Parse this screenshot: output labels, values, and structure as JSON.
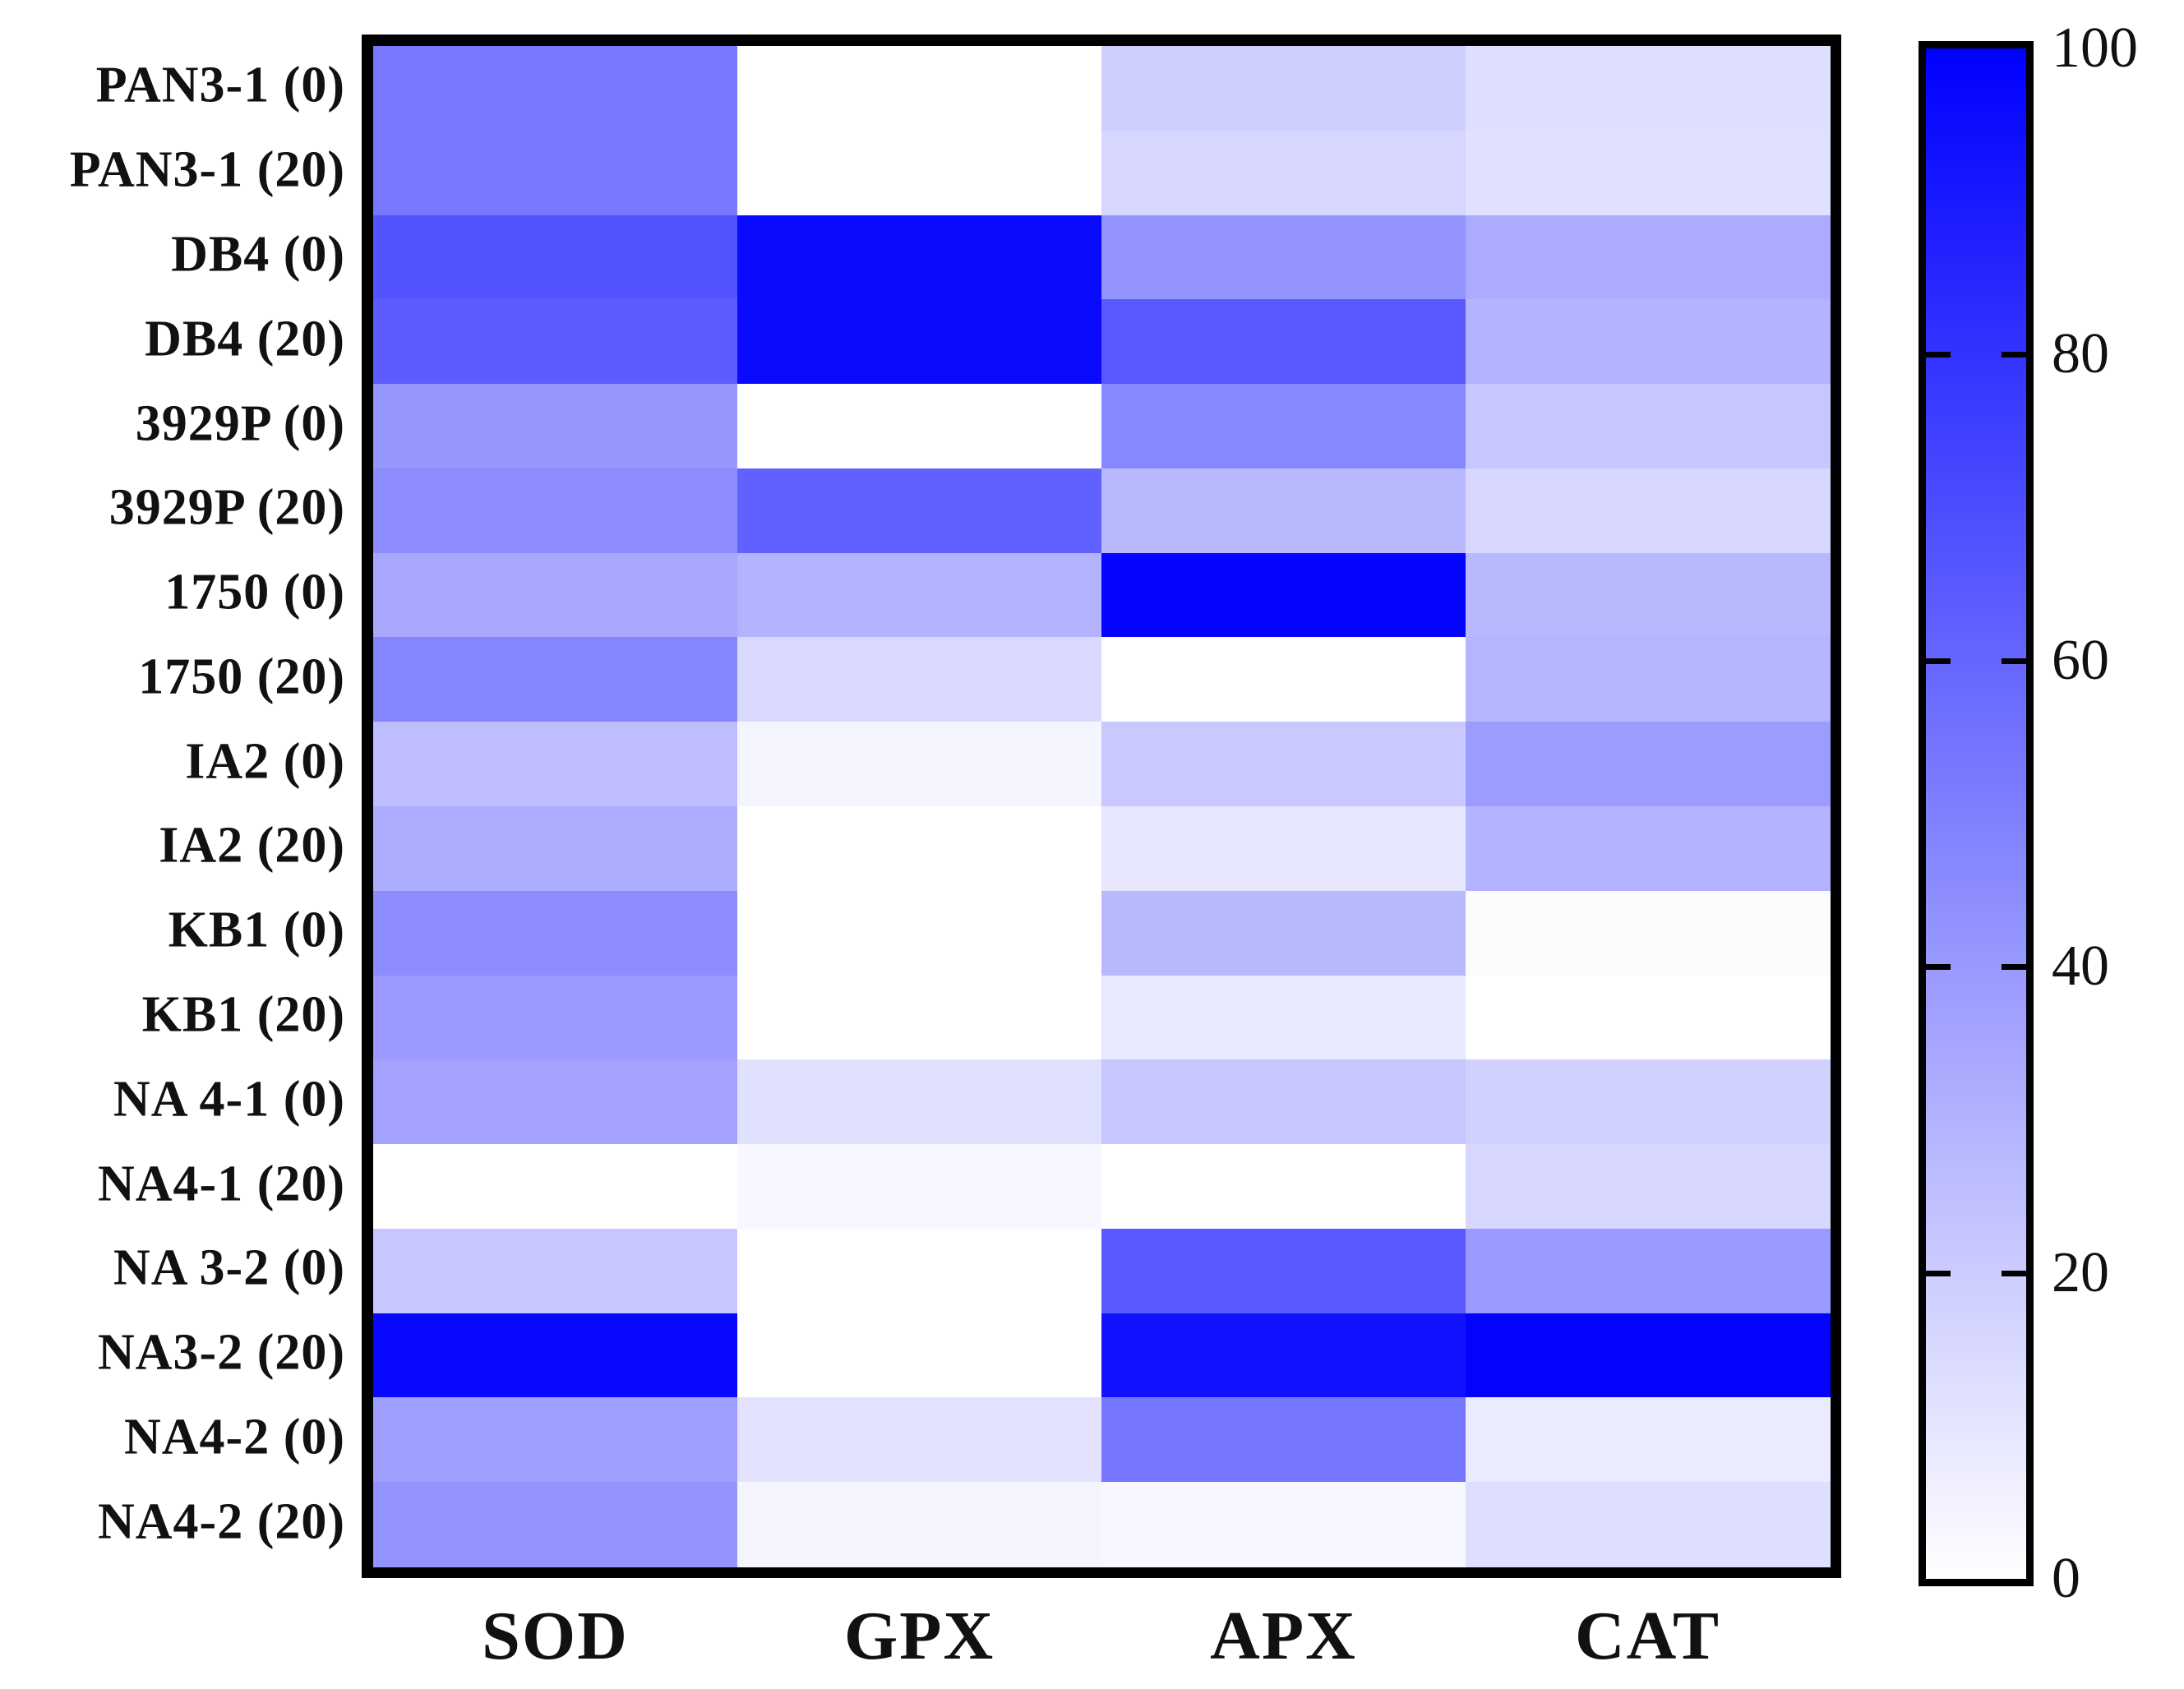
{
  "chart_data": {
    "type": "heatmap",
    "title": "",
    "xlabel": "",
    "ylabel": "",
    "columns": [
      "SOD",
      "GPX",
      "APX",
      "CAT"
    ],
    "rows": [
      "PAN3-1 (0)",
      "PAN3-1 (20)",
      "DB4 (0)",
      "DB4 (20)",
      "3929P (0)",
      "3929P (20)",
      "1750 (0)",
      "1750 (20)",
      "IA2 (0)",
      "IA2 (20)",
      "KB1 (0)",
      "KB1 (20)",
      "NA 4-1 (0)",
      "NA4-1 (20)",
      "NA 3-2 (0)",
      "NA3-2 (20)",
      "NA4-2 (0)",
      "NA4-2 (20)"
    ],
    "values": [
      [
        53,
        0,
        19,
        13
      ],
      [
        53,
        0,
        16,
        12
      ],
      [
        67,
        96,
        42,
        33
      ],
      [
        64,
        96,
        65,
        30
      ],
      [
        41,
        0,
        47,
        22
      ],
      [
        45,
        62,
        28,
        16
      ],
      [
        34,
        30,
        98,
        28
      ],
      [
        48,
        15,
        0,
        29
      ],
      [
        26,
        4,
        21,
        39
      ],
      [
        32,
        0,
        10,
        30
      ],
      [
        45,
        0,
        28,
        1
      ],
      [
        40,
        0,
        9,
        0
      ],
      [
        36,
        12,
        22,
        18
      ],
      [
        0,
        3,
        0,
        16
      ],
      [
        22,
        0,
        65,
        40
      ],
      [
        97,
        0,
        93,
        99
      ],
      [
        38,
        11,
        54,
        8
      ],
      [
        42,
        4,
        3,
        13
      ]
    ],
    "legend_position": "right",
    "grid": false,
    "colorbar": {
      "min": 0,
      "max": 100,
      "ticks": [
        100,
        80,
        60,
        40,
        20,
        0
      ],
      "min_color": "#ffffff",
      "max_color": "#0000ff"
    }
  }
}
